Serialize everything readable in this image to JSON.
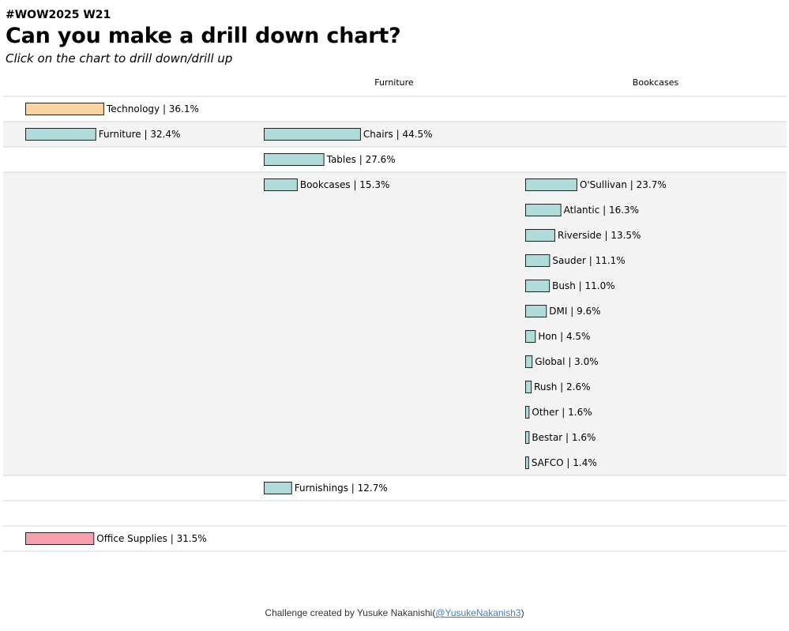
{
  "header": {
    "tag": "#WOW2025 W21",
    "title": "Can you make a drill down chart?",
    "instruction": "Click on the chart to drill down/drill up"
  },
  "footer": {
    "text": "Challenge created by Yusuke Nakanishi(",
    "link": "@YusukeNakanish3",
    "suffix": ")"
  },
  "colors": {
    "Technology": "#f9d49e",
    "Furniture": "#b1dada",
    "Office Supplies": "#f4a0ad",
    "row_alt": "#f4f4f4",
    "divider": "#d6d6d6"
  },
  "chart_data": {
    "type": "bar",
    "column_headers": [
      "",
      "Furniture",
      "Bookcases"
    ],
    "drill_path": [
      "Furniture",
      "Bookcases"
    ],
    "level1": [
      {
        "category": "Technology",
        "value": 36.1,
        "label": "Technology | 36.1%"
      },
      {
        "category": "Furniture",
        "value": 32.4,
        "label": "Furniture | 32.4%"
      },
      {
        "category": "Office Supplies",
        "value": 31.5,
        "label": "Office Supplies | 31.5%"
      }
    ],
    "level2": [
      {
        "category": "Chairs",
        "value": 44.5,
        "label": "Chairs | 44.5%"
      },
      {
        "category": "Tables",
        "value": 27.6,
        "label": "Tables | 27.6%"
      },
      {
        "category": "Bookcases",
        "value": 15.3,
        "label": "Bookcases | 15.3%"
      },
      {
        "category": "Furnishings",
        "value": 12.7,
        "label": "Furnishings | 12.7%"
      }
    ],
    "level3": [
      {
        "category": "O'Sullivan",
        "value": 23.7,
        "label": "O'Sullivan | 23.7%"
      },
      {
        "category": "Atlantic",
        "value": 16.3,
        "label": "Atlantic | 16.3%"
      },
      {
        "category": "Riverside",
        "value": 13.5,
        "label": "Riverside | 13.5%"
      },
      {
        "category": "Sauder",
        "value": 11.1,
        "label": "Sauder | 11.1%"
      },
      {
        "category": "Bush",
        "value": 11.0,
        "label": "Bush | 11.0%"
      },
      {
        "category": "DMI",
        "value": 9.6,
        "label": "DMI | 9.6%"
      },
      {
        "category": "Hon",
        "value": 4.5,
        "label": "Hon | 4.5%"
      },
      {
        "category": "Global",
        "value": 3.0,
        "label": "Global | 3.0%"
      },
      {
        "category": "Rush",
        "value": 2.6,
        "label": "Rush | 2.6%"
      },
      {
        "category": "Other",
        "value": 1.6,
        "label": "Other | 1.6%"
      },
      {
        "category": "Bestar",
        "value": 1.6,
        "label": "Bestar | 1.6%"
      },
      {
        "category": "SAFCO",
        "value": 1.4,
        "label": "SAFCO | 1.4%"
      }
    ]
  }
}
